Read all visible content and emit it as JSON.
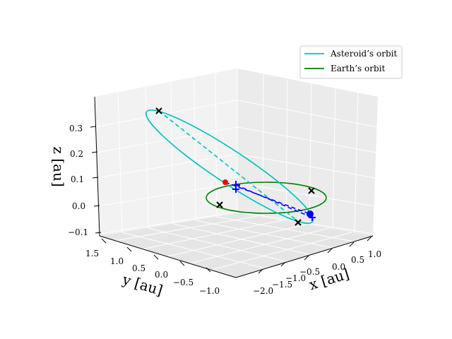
{
  "chart_data": {
    "type": "line3d",
    "title": "",
    "axes": {
      "x": {
        "label": "x [au]",
        "ticks": [
          "−2.0",
          "−1.5",
          "−1.0",
          "−0.5",
          "0.0",
          "0.5",
          "1.0"
        ]
      },
      "y": {
        "label": "y [au]",
        "ticks": [
          "1.5",
          "1.0",
          "0.5",
          "0.0",
          "−0.5",
          "−1.0"
        ]
      },
      "z": {
        "label": "z [au]",
        "ticks": [
          "0.3",
          "0.2",
          "0.1",
          "0.0",
          "−0.1"
        ]
      }
    },
    "legend": {
      "position": "top-right",
      "entries": [
        {
          "label": "Asteroid’s orbit",
          "color": "#00bfbf"
        },
        {
          "label": "Earth’s orbit",
          "color": "#008000"
        }
      ]
    },
    "series": [
      {
        "name": "Asteroid’s orbit",
        "color": "#00bfbf",
        "style": "solid ellipse",
        "inclination_deg": 12
      },
      {
        "name": "Earth’s orbit",
        "color": "#008000",
        "style": "solid ellipse",
        "radius_au": 1.0
      }
    ],
    "markers": [
      {
        "name": "asteroid-aphelion",
        "shape": "x",
        "color": "#000000"
      },
      {
        "name": "asteroid-perihelion",
        "shape": "x",
        "color": "#000000"
      },
      {
        "name": "earth-node-1",
        "shape": "x",
        "color": "#000000"
      },
      {
        "name": "earth-node-2",
        "shape": "x",
        "color": "#000000"
      },
      {
        "name": "earth-position",
        "shape": "dot",
        "color": "#0000ff"
      },
      {
        "name": "asteroid-position",
        "shape": "dot",
        "color": "#ff0000"
      },
      {
        "name": "sun-focus",
        "shape": "plus",
        "color": "#0000ff"
      }
    ],
    "grid": true
  }
}
